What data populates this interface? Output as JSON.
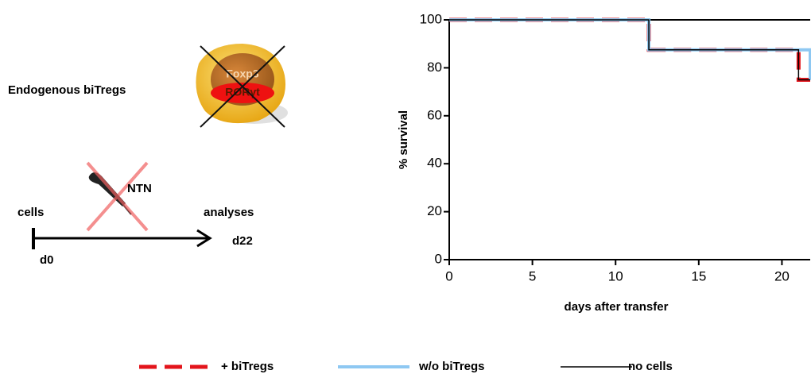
{
  "diagram": {
    "title": "Endogenous biTregs",
    "cell_labels": [
      "Foxp3",
      "RORγt"
    ],
    "treatment": "NTN",
    "start_label": "cells",
    "end_label": "analyses",
    "start_day": "d0",
    "end_day": "d22"
  },
  "chart_data": {
    "type": "step",
    "x_label": "days after transfer",
    "y_label": "% survival",
    "x": [
      0,
      12,
      21,
      21.7
    ],
    "series": [
      {
        "name": "+ biTregs",
        "color": "#e3141b",
        "line_style": "dashed",
        "values": [
          100,
          87.5,
          75,
          75
        ]
      },
      {
        "name": "w/o biTregs",
        "color": "#8ec8f2",
        "line_style": "solid",
        "values": [
          100,
          87.5,
          87.5,
          75
        ]
      },
      {
        "name": "no cells",
        "color": "#000000",
        "line_style": "thin",
        "values": [
          100,
          87.5,
          75,
          75
        ]
      }
    ],
    "xlim": [
      0,
      21.7
    ],
    "ylim": [
      0,
      100
    ],
    "xticks": [
      0,
      5,
      10,
      15,
      20
    ],
    "yticks": [
      0,
      20,
      40,
      60,
      80,
      100
    ],
    "legend": "bottom"
  }
}
